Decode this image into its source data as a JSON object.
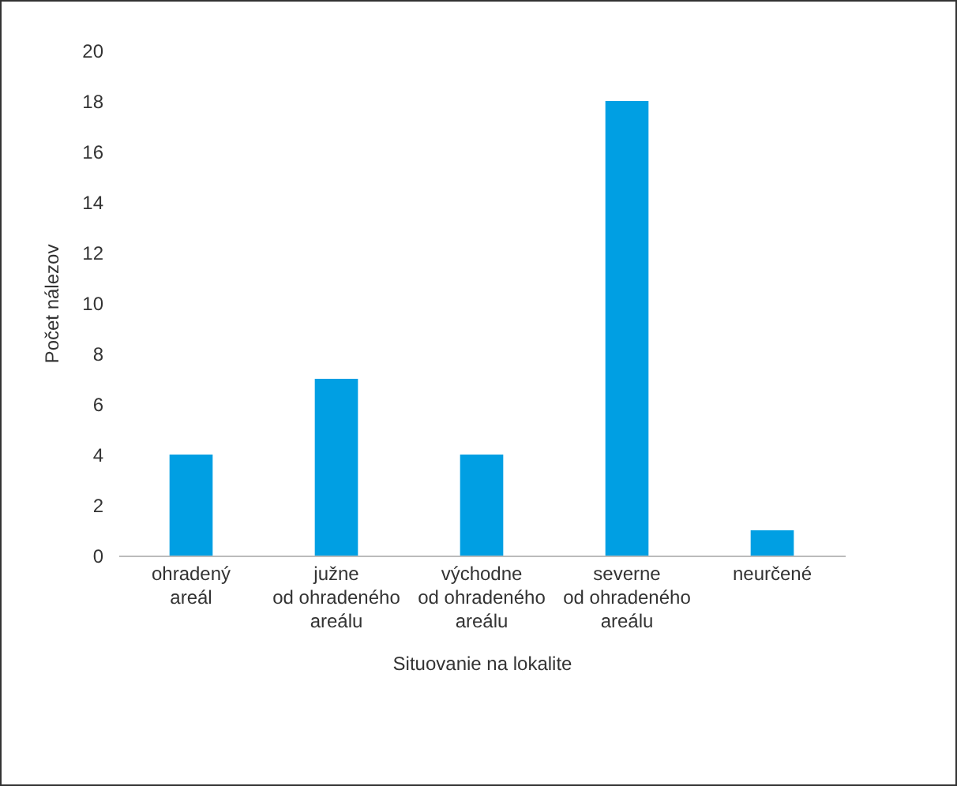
{
  "chart_data": {
    "type": "bar",
    "xlabel": "Situovanie na lokalite",
    "ylabel": "Počet nálezov",
    "categories": [
      "ohradený\nareál",
      "južne\nod ohradeného\nareálu",
      "východne\nod ohradeného\nareálu",
      "severne\nod ohradeného\nareálu",
      "neurčené"
    ],
    "values": [
      4,
      7,
      4,
      18,
      1
    ],
    "color": "#009fe3",
    "ylim": [
      0,
      20
    ],
    "yticks": [
      0,
      2,
      4,
      6,
      8,
      10,
      12,
      14,
      16,
      18,
      20
    ],
    "grid": false
  }
}
